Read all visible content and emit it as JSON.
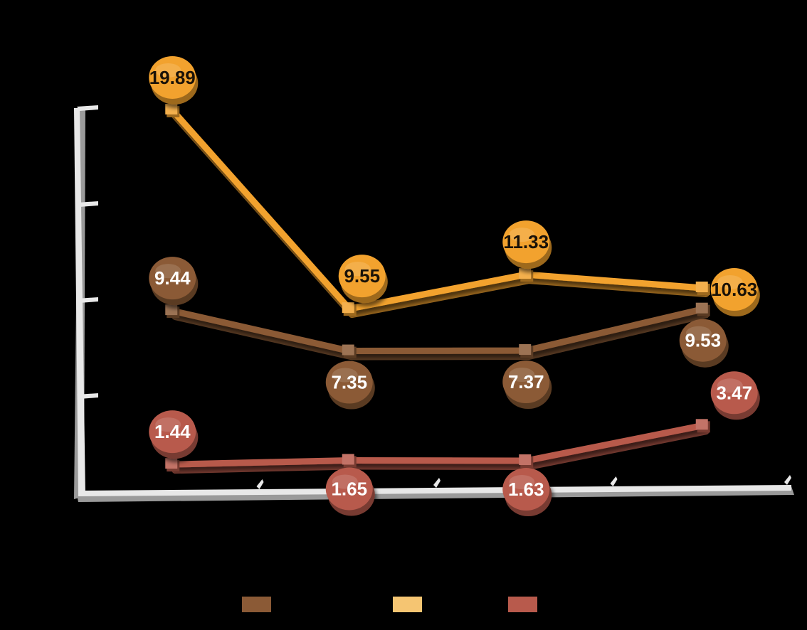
{
  "chart_data": {
    "type": "line",
    "title": "",
    "xlabel": "",
    "ylabel": "",
    "categories": [
      "",
      "",
      "",
      ""
    ],
    "ylim": [
      0,
      20
    ],
    "grid": false,
    "legend_position": "bottom",
    "y_ticks_shown": false,
    "series": [
      {
        "color": "#8B5A36",
        "label_color": "#FFFFFF",
        "label_position": "mixed",
        "values": [
          9.44,
          7.35,
          7.37,
          9.53
        ],
        "labels": [
          "9.44",
          "7.35",
          "7.37",
          "9.53"
        ]
      },
      {
        "color": "#F2A22E",
        "label_color": "#1A1208",
        "label_position": "above",
        "values": [
          19.89,
          9.55,
          11.33,
          10.63
        ],
        "labels": [
          "19.89",
          "9.55",
          "11.33",
          "10.63"
        ]
      },
      {
        "color": "#B85A4C",
        "label_color": "#FFFFFF",
        "label_position": "mixed",
        "values": [
          1.44,
          1.65,
          1.63,
          3.47
        ],
        "labels": [
          "1.44",
          "1.65",
          "1.63",
          "3.47"
        ]
      }
    ]
  },
  "legend": {
    "swatches": [
      {
        "color": "#8B5A36"
      },
      {
        "color": "#F5C572"
      },
      {
        "color": "#B85A4C"
      }
    ]
  },
  "colors": {
    "background": "#000000",
    "axis": "#E8E8E8",
    "axis_shadow": "#9A9A9A"
  }
}
